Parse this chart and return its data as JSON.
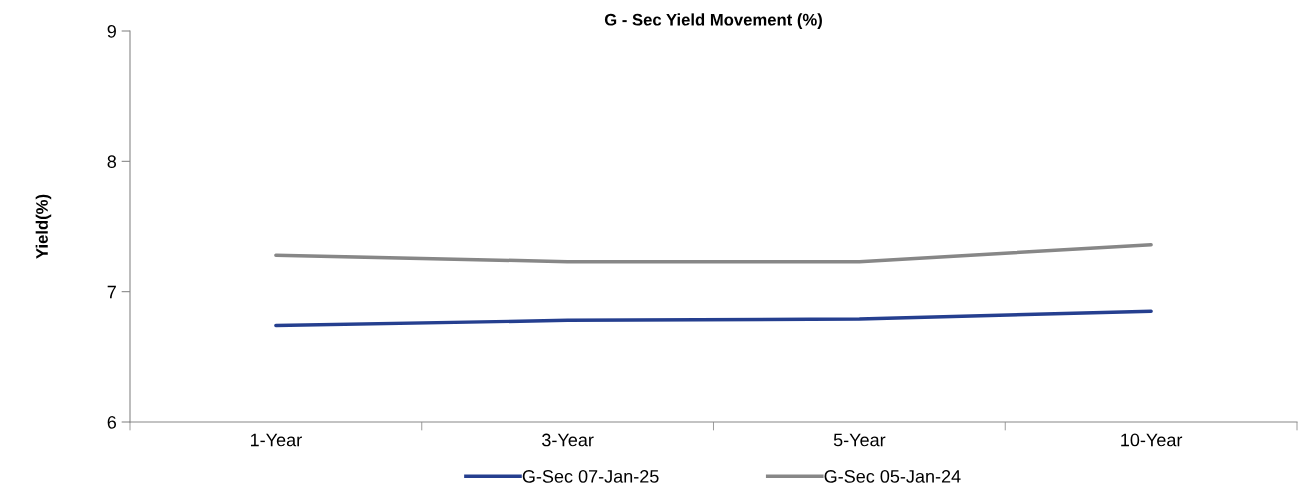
{
  "chart_data": {
    "type": "line",
    "title": "G - Sec Yield Movement (%)",
    "ylabel": "Yield(%)",
    "categories": [
      "1-Year",
      "3-Year",
      "5-Year",
      "10-Year"
    ],
    "series": [
      {
        "name": "G-Sec 07-Jan-25",
        "color": "#253f8f",
        "values": [
          6.74,
          6.78,
          6.79,
          6.85
        ]
      },
      {
        "name": "G-Sec 05-Jan-24",
        "color": "#878787",
        "values": [
          7.28,
          7.23,
          7.23,
          7.36
        ]
      }
    ],
    "ylim": [
      6,
      9
    ],
    "yticks": [
      6,
      7,
      8,
      9
    ],
    "grid": false,
    "legend": "bottom",
    "marker": "none",
    "line_style": "solid"
  }
}
